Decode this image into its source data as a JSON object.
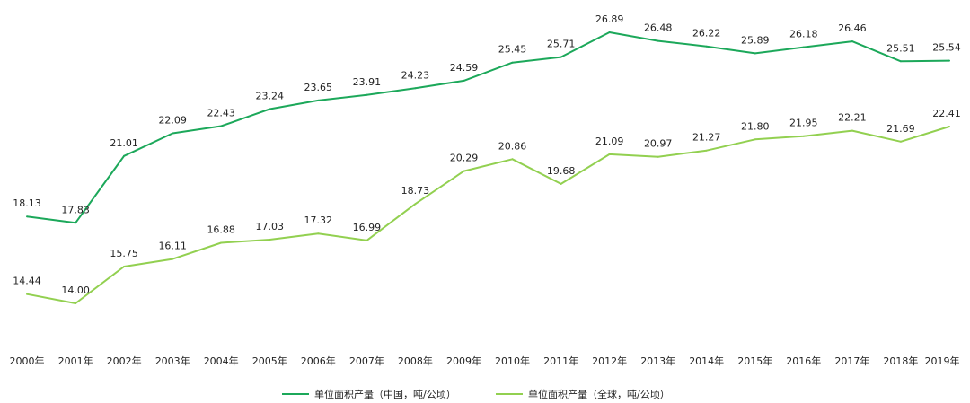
{
  "chart_data": {
    "type": "line",
    "title": "",
    "xlabel": "",
    "ylabel": "",
    "ylim": [
      12,
      28
    ],
    "grid": false,
    "legend_position": "bottom-center",
    "categories": [
      "2000年",
      "2001年",
      "2002年",
      "2003年",
      "2004年",
      "2005年",
      "2006年",
      "2007年",
      "2008年",
      "2009年",
      "2010年",
      "2011年",
      "2012年",
      "2013年",
      "2014年",
      "2015年",
      "2016年",
      "2017年",
      "2018年",
      "2019年"
    ],
    "series": [
      {
        "name": "单位面积产量（中国，吨/公顷）",
        "color": "#1ca85a",
        "values": [
          18.13,
          17.83,
          21.01,
          22.09,
          22.43,
          23.24,
          23.65,
          23.91,
          24.23,
          24.59,
          25.45,
          25.71,
          26.89,
          26.48,
          26.22,
          25.89,
          26.18,
          26.46,
          25.51,
          25.54
        ],
        "labels": [
          "18.13",
          "17.83",
          "21.01",
          "22.09",
          "22.43",
          "23.24",
          "23.65",
          "23.91",
          "24.23",
          "24.59",
          "25.45",
          "25.71",
          "26.89",
          "26.48",
          "26.22",
          "25.89",
          "26.18",
          "26.46",
          "25.51",
          "25.54"
        ]
      },
      {
        "name": "单位面积产量（全球，吨/公顷）",
        "color": "#92d050",
        "values": [
          14.44,
          14.0,
          15.75,
          16.11,
          16.88,
          17.03,
          17.32,
          16.99,
          18.73,
          20.29,
          20.86,
          19.68,
          21.09,
          20.97,
          21.27,
          21.8,
          21.95,
          22.21,
          21.69,
          22.41
        ],
        "labels": [
          "14.44",
          "14.00",
          "15.75",
          "16.11",
          "16.88",
          "17.03",
          "17.32",
          "16.99",
          "18.73",
          "20.29",
          "20.86",
          "19.68",
          "21.09",
          "20.97",
          "21.27",
          "21.80",
          "21.95",
          "22.21",
          "21.69",
          "22.41"
        ]
      }
    ]
  }
}
